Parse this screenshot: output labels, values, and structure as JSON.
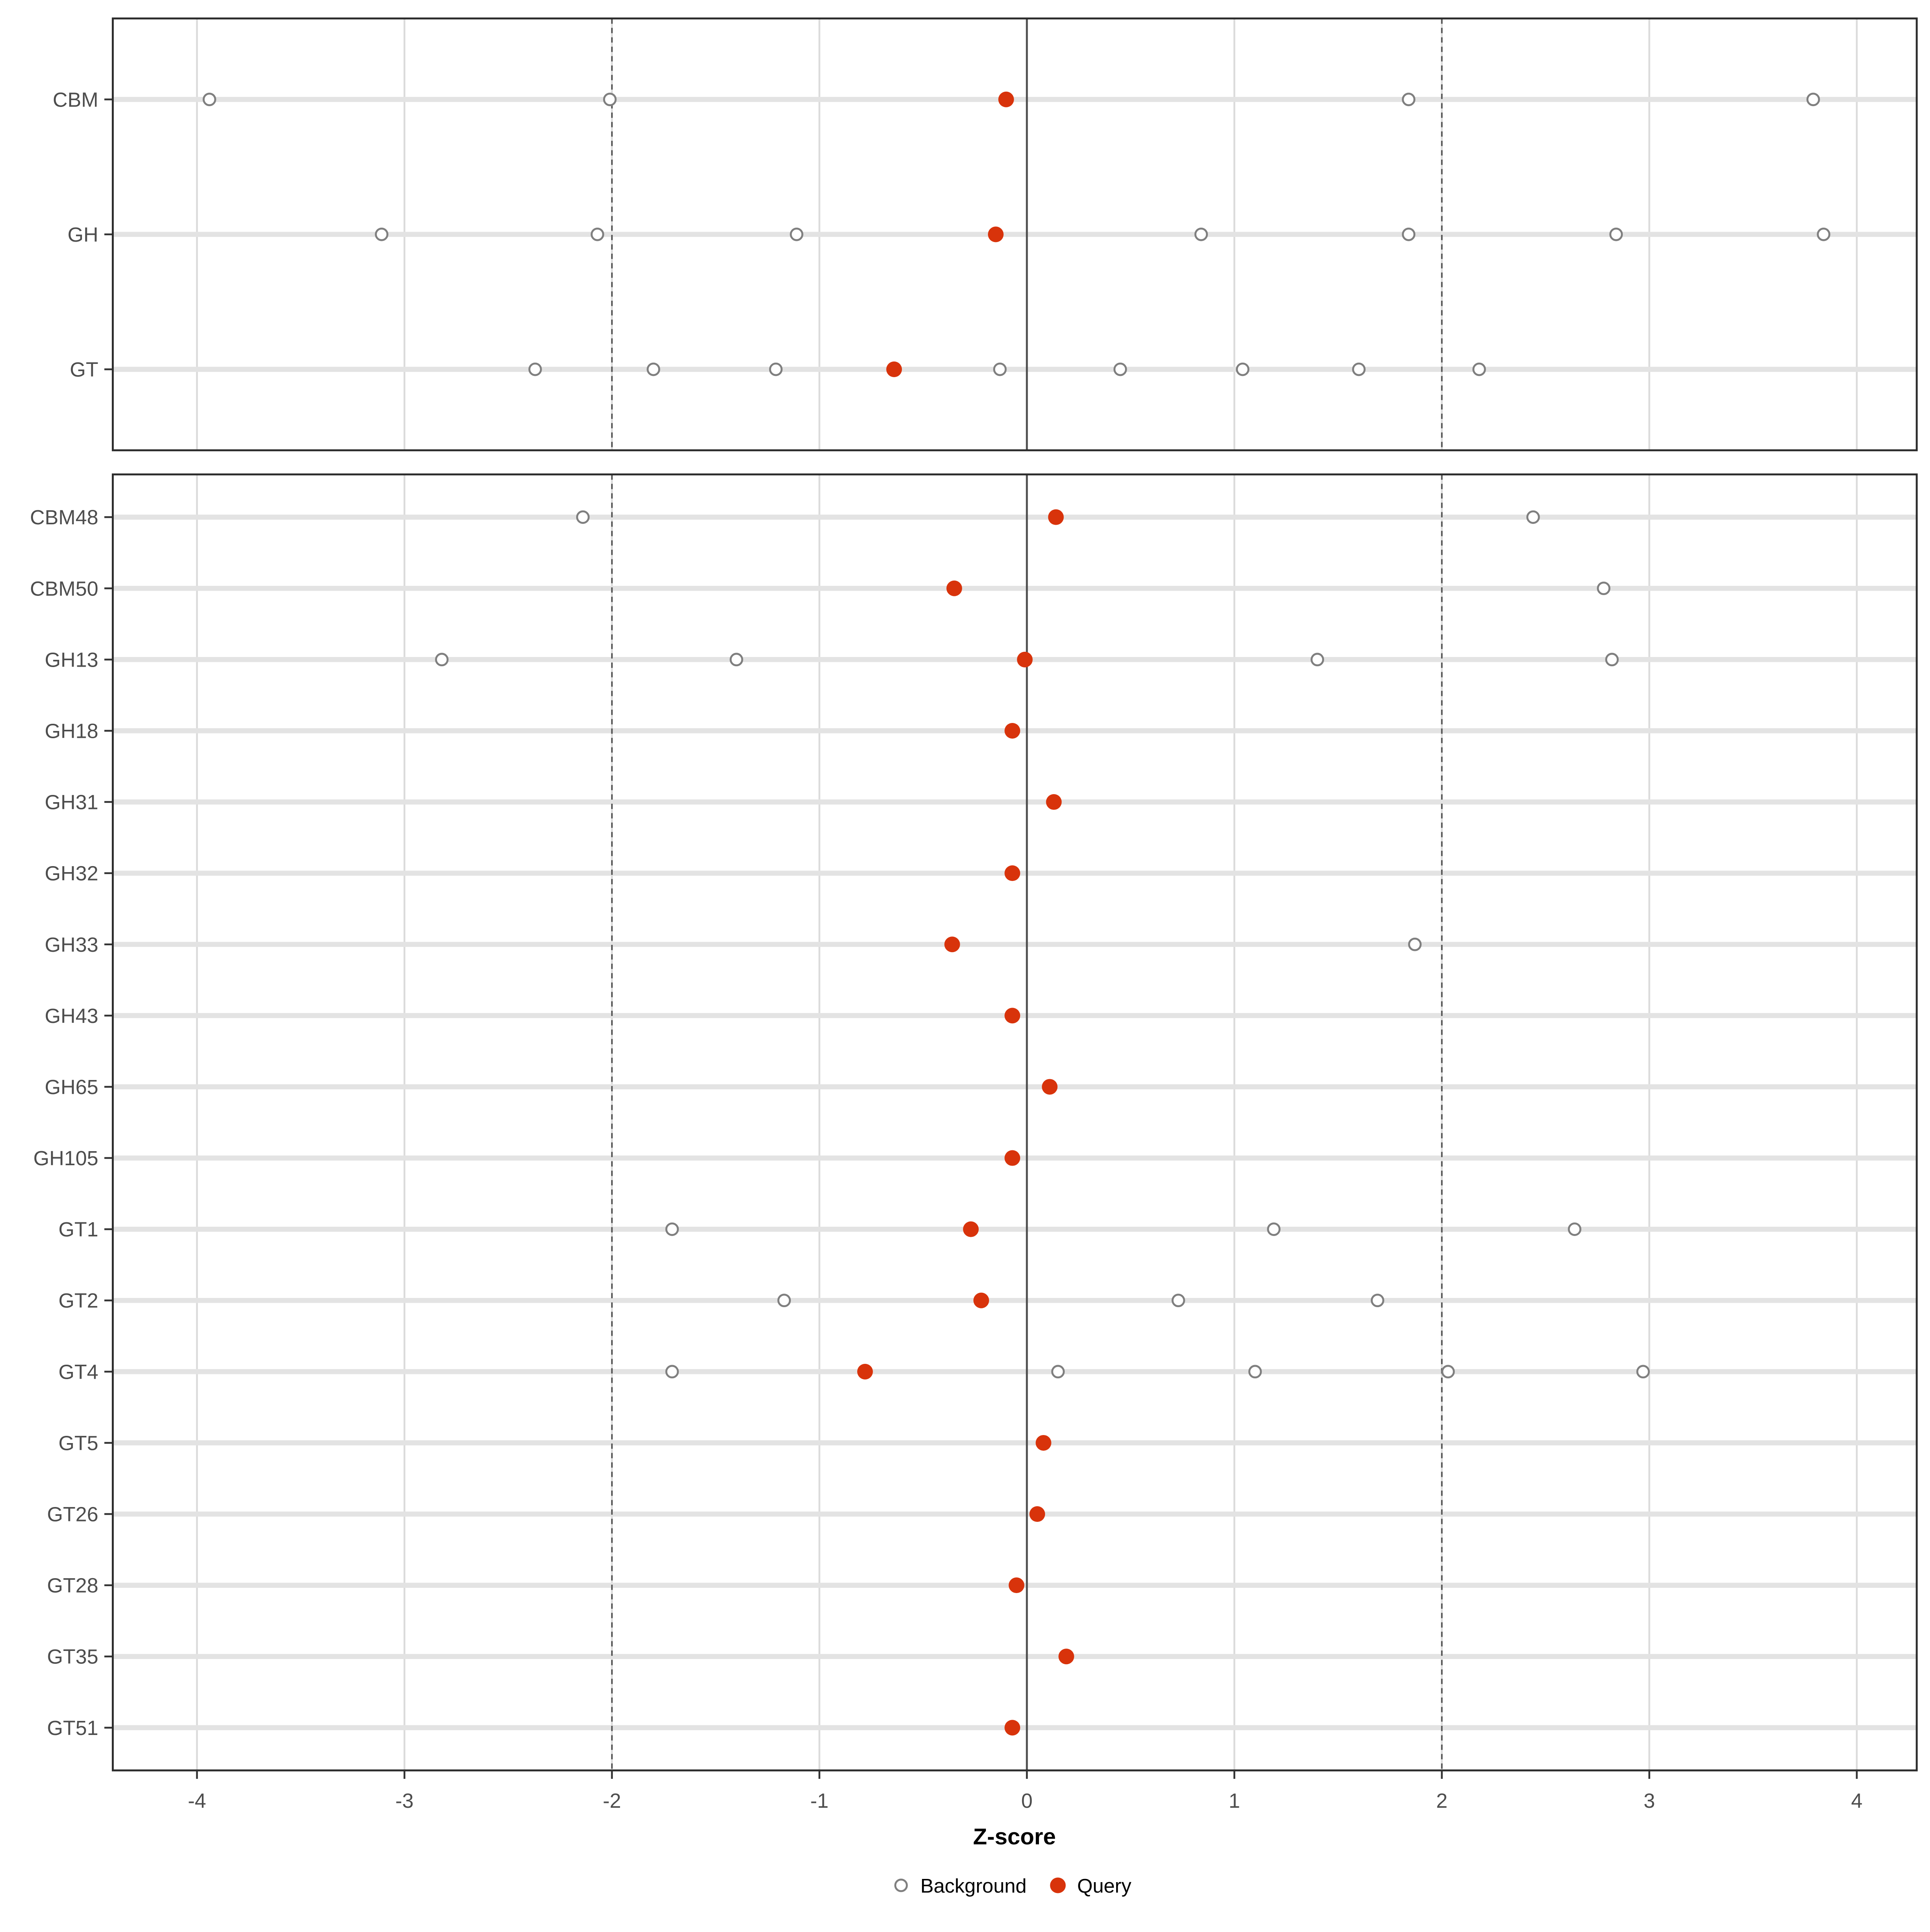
{
  "chart_data": {
    "type": "scatter",
    "title": "",
    "xlabel": "Z-score",
    "ylabel": "",
    "x_ticks": [
      -4,
      -3,
      -2,
      -1,
      0,
      1,
      2,
      3,
      4
    ],
    "xlim": [
      -4.41,
      4.33
    ],
    "grid": "major-x-and-row-lines",
    "reference_lines": {
      "solid_vline": 0,
      "dashed_vlines": [
        -2,
        2
      ]
    },
    "legend_position": "bottom",
    "legend": {
      "items": [
        {
          "label": "Background"
        },
        {
          "label": "Query"
        }
      ]
    },
    "colors": {
      "query_fill": "#D8330B",
      "background_stroke": "#7F7F7F",
      "row_line": "#E3E3E3",
      "gridline": "#DBDBDB",
      "dashed_line": "#595959",
      "zero_line": "#4D4D4D",
      "panel_border": "#2B2B2B",
      "axis_text": "#4D4D4D"
    },
    "facets": [
      {
        "name": "families",
        "rows": [
          {
            "label": "CBM",
            "query": -0.1,
            "background": [
              -3.94,
              -2.01,
              1.84,
              3.79
            ]
          },
          {
            "label": "GH",
            "query": -0.15,
            "background": [
              -3.11,
              -2.07,
              -1.11,
              0.84,
              1.84,
              2.84,
              3.84
            ]
          },
          {
            "label": "GT",
            "query": -0.64,
            "background": [
              -2.37,
              -1.8,
              -1.21,
              -0.13,
              0.45,
              1.04,
              1.6,
              2.18
            ]
          }
        ]
      },
      {
        "name": "subfamilies",
        "rows": [
          {
            "label": "CBM48",
            "query": 0.14,
            "background": [
              -2.14,
              2.44
            ]
          },
          {
            "label": "CBM50",
            "query": -0.35,
            "background": [
              2.78
            ]
          },
          {
            "label": "GH13",
            "query": -0.01,
            "background": [
              -2.82,
              -1.4,
              1.4,
              2.82
            ]
          },
          {
            "label": "GH18",
            "query": -0.07,
            "background": []
          },
          {
            "label": "GH31",
            "query": 0.13,
            "background": []
          },
          {
            "label": "GH32",
            "query": -0.07,
            "background": []
          },
          {
            "label": "GH33",
            "query": -0.36,
            "background": [
              1.87
            ]
          },
          {
            "label": "GH43",
            "query": -0.07,
            "background": []
          },
          {
            "label": "GH65",
            "query": 0.11,
            "background": []
          },
          {
            "label": "GH105",
            "query": -0.07,
            "background": []
          },
          {
            "label": "GT1",
            "query": -0.27,
            "background": [
              -1.71,
              1.19,
              2.64
            ]
          },
          {
            "label": "GT2",
            "query": -0.22,
            "background": [
              -1.17,
              0.73,
              1.69
            ]
          },
          {
            "label": "GT4",
            "query": -0.78,
            "background": [
              -1.71,
              0.15,
              1.1,
              2.03,
              2.97
            ]
          },
          {
            "label": "GT5",
            "query": 0.08,
            "background": []
          },
          {
            "label": "GT26",
            "query": 0.05,
            "background": []
          },
          {
            "label": "GT28",
            "query": -0.05,
            "background": []
          },
          {
            "label": "GT35",
            "query": 0.19,
            "background": []
          },
          {
            "label": "GT51",
            "query": -0.07,
            "background": []
          }
        ]
      }
    ]
  }
}
